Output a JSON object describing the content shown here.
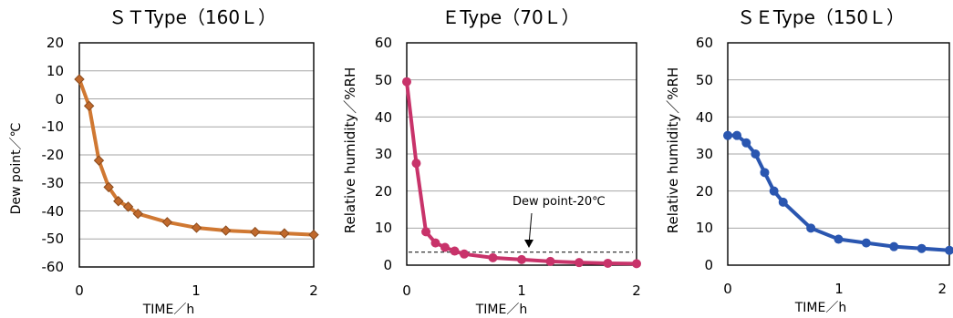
{
  "chart_data": [
    {
      "type": "line",
      "title": "ＳＴType（160Ｌ）",
      "xlabel": "TIME／h",
      "ylabel": "Dew point／℃",
      "xlim": [
        0,
        2
      ],
      "ylim": [
        -60,
        20
      ],
      "xticks": [
        "0",
        "1",
        "2"
      ],
      "yticks": [
        "20",
        "10",
        "0",
        "-10",
        "-20",
        "-30",
        "-40",
        "-50",
        "-60"
      ],
      "grid": "horizontal",
      "color": "#d07832",
      "marker": "diamond",
      "series": [
        {
          "x": [
            0,
            0.083,
            0.167,
            0.25,
            0.333,
            0.417,
            0.5,
            0.75,
            1.0,
            1.25,
            1.5,
            1.75,
            2.0
          ],
          "y": [
            7,
            -2.5,
            -22,
            -31.5,
            -36.5,
            -38.5,
            -41,
            -44,
            -46,
            -47,
            -47.5,
            -48,
            -48.5
          ]
        }
      ]
    },
    {
      "type": "line",
      "title": "ＥType（70Ｌ）",
      "xlabel": "TIME／h",
      "ylabel": "Relative humidity／%RH",
      "xlim": [
        0,
        2
      ],
      "ylim": [
        0,
        60
      ],
      "xticks": [
        "0",
        "1",
        "2"
      ],
      "yticks": [
        "60",
        "50",
        "40",
        "30",
        "20",
        "10",
        "0"
      ],
      "grid": "horizontal",
      "color": "#c8336a",
      "marker": "circle",
      "annotation": "Dew point-20℃",
      "reference_line": 3.5,
      "series": [
        {
          "x": [
            0,
            0.083,
            0.167,
            0.25,
            0.333,
            0.417,
            0.5,
            0.75,
            1.0,
            1.25,
            1.5,
            1.75,
            2.0
          ],
          "y": [
            49.5,
            27.5,
            9,
            6,
            4.8,
            3.8,
            3,
            2,
            1.5,
            1,
            0.7,
            0.5,
            0.4
          ]
        }
      ]
    },
    {
      "type": "line",
      "title": "ＳＥType（150Ｌ）",
      "xlabel": "TIME／h",
      "ylabel": "Relative humidity／%RH",
      "xlim": [
        0,
        2
      ],
      "ylim": [
        0,
        60
      ],
      "xticks": [
        "0",
        "1",
        "2"
      ],
      "yticks": [
        "60",
        "50",
        "40",
        "30",
        "20",
        "10",
        "0"
      ],
      "grid": "horizontal",
      "color": "#2a56b0",
      "marker": "circle",
      "series": [
        {
          "x": [
            0,
            0.083,
            0.167,
            0.25,
            0.333,
            0.417,
            0.5,
            0.75,
            1.0,
            1.25,
            1.5,
            1.75,
            2.0
          ],
          "y": [
            35,
            35,
            33,
            30,
            25,
            20,
            17,
            10,
            7,
            6,
            5,
            4.5,
            4
          ]
        }
      ]
    }
  ]
}
